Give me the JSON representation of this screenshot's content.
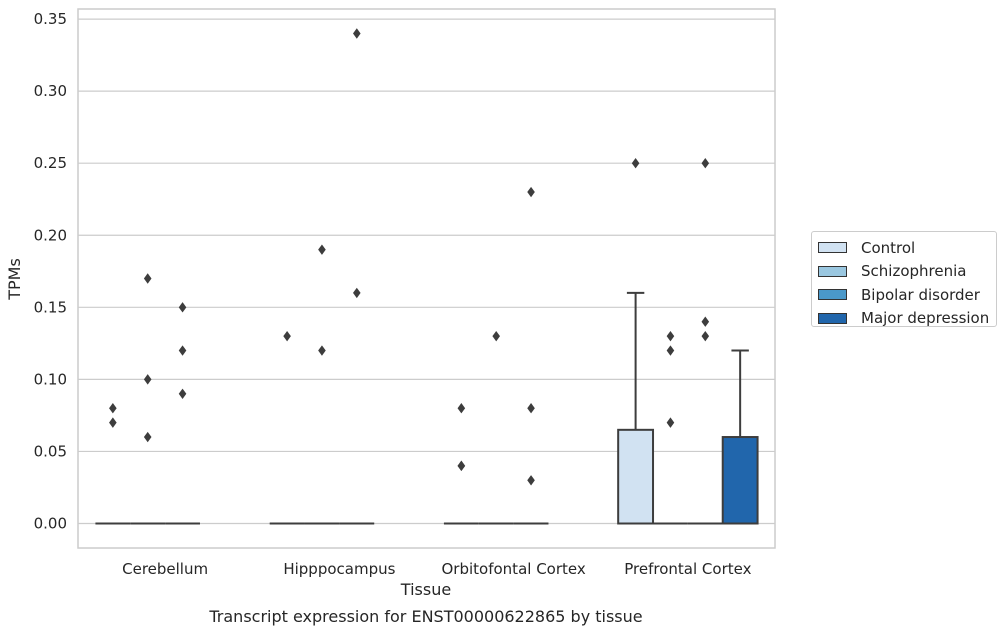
{
  "chart_data": {
    "type": "box",
    "title": "Transcript expression for ENST00000622865 by tissue",
    "xlabel": "Tissue",
    "ylabel": "TPMs",
    "ylim": [
      -0.017,
      0.357
    ],
    "yticks": [
      "0.00",
      "0.05",
      "0.10",
      "0.15",
      "0.20",
      "0.25",
      "0.30",
      "0.35"
    ],
    "ytick_values": [
      0,
      0.05,
      0.1,
      0.15,
      0.2,
      0.25,
      0.3,
      0.35
    ],
    "categories": [
      "Cerebellum",
      "Hipppocampus",
      "Orbitofontal Cortex",
      "Prefrontal Cortex"
    ],
    "grid": "horizontal",
    "legend_placement": "outside right",
    "series": [
      {
        "name": "Control",
        "color": "#d1e2f2",
        "boxes": [
          {
            "q1": 0,
            "median": 0,
            "q3": 0,
            "whisker_low": 0,
            "whisker_high": 0,
            "outliers": [
              0.08,
              0.07
            ]
          },
          {
            "q1": 0,
            "median": 0,
            "q3": 0,
            "whisker_low": 0,
            "whisker_high": 0,
            "outliers": [
              0.13
            ]
          },
          {
            "q1": 0,
            "median": 0,
            "q3": 0,
            "whisker_low": 0,
            "whisker_high": 0,
            "outliers": [
              0.08,
              0.04,
              0.04
            ]
          },
          {
            "q1": 0,
            "median": 0,
            "q3": 0.065,
            "whisker_low": 0,
            "whisker_high": 0.16,
            "outliers": [
              0.25
            ]
          }
        ]
      },
      {
        "name": "Schizophrenia",
        "color": "#9ac7e0",
        "boxes": [
          {
            "q1": 0,
            "median": 0,
            "q3": 0,
            "whisker_low": 0,
            "whisker_high": 0,
            "outliers": [
              0.17,
              0.1,
              0.06
            ]
          },
          {
            "q1": 0,
            "median": 0,
            "q3": 0,
            "whisker_low": 0,
            "whisker_high": 0,
            "outliers": [
              0.19,
              0.12
            ]
          },
          {
            "q1": 0,
            "median": 0,
            "q3": 0,
            "whisker_low": 0,
            "whisker_high": 0,
            "outliers": [
              0.13
            ]
          },
          {
            "q1": 0,
            "median": 0,
            "q3": 0,
            "whisker_low": 0,
            "whisker_high": 0,
            "outliers": [
              0.13,
              0.12,
              0.07
            ]
          }
        ]
      },
      {
        "name": "Bipolar disorder",
        "color": "#4a98c9",
        "boxes": [
          {
            "q1": 0,
            "median": 0,
            "q3": 0,
            "whisker_low": 0,
            "whisker_high": 0,
            "outliers": [
              0.15,
              0.12,
              0.09
            ]
          },
          {
            "q1": 0,
            "median": 0,
            "q3": 0,
            "whisker_low": 0,
            "whisker_high": 0,
            "outliers": [
              0.34,
              0.16
            ]
          },
          {
            "q1": 0,
            "median": 0,
            "q3": 0,
            "whisker_low": 0,
            "whisker_high": 0,
            "outliers": [
              0.23,
              0.08,
              0.03
            ]
          },
          {
            "q1": 0,
            "median": 0,
            "q3": 0,
            "whisker_low": 0,
            "whisker_high": 0,
            "outliers": [
              0.25,
              0.14,
              0.13
            ]
          }
        ]
      },
      {
        "name": "Major depression",
        "color": "#2166ac",
        "boxes": [
          null,
          null,
          null,
          {
            "q1": 0,
            "median": 0,
            "q3": 0.06,
            "whisker_low": 0,
            "whisker_high": 0.12,
            "outliers": []
          }
        ]
      }
    ]
  }
}
